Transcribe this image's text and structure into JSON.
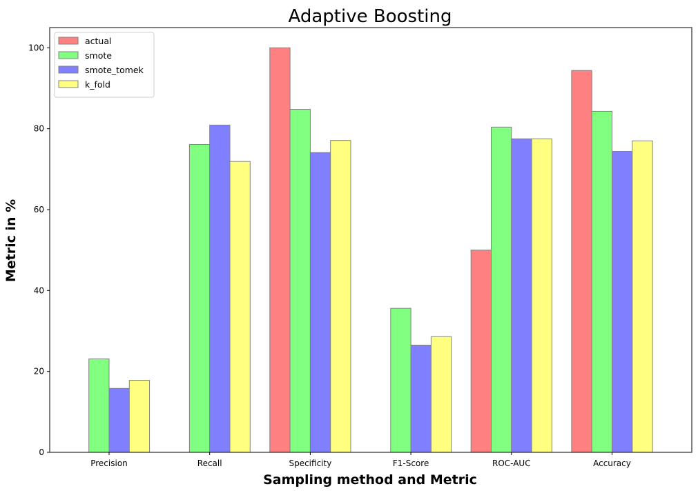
{
  "chart_data": {
    "type": "bar",
    "title": "Adaptive Boosting",
    "xlabel": "Sampling method and Metric",
    "ylabel": "Metric in %",
    "categories": [
      "Precision",
      "Recall",
      "Specificity",
      "F1-Score",
      "ROC-AUC",
      "Accuracy"
    ],
    "series": [
      {
        "name": "actual",
        "color": "#ff8080",
        "values": [
          0,
          0,
          100,
          0,
          50,
          94.4
        ]
      },
      {
        "name": "smote",
        "color": "#80ff80",
        "values": [
          23.1,
          76.1,
          84.8,
          35.6,
          80.4,
          84.3
        ]
      },
      {
        "name": "smote_tomek",
        "color": "#8080ff",
        "values": [
          15.8,
          80.9,
          74.1,
          26.5,
          77.5,
          74.4
        ]
      },
      {
        "name": "k_fold",
        "color": "#ffff80",
        "values": [
          17.8,
          71.9,
          77.1,
          28.6,
          77.5,
          77.0
        ]
      }
    ],
    "ylim": [
      0,
      105
    ],
    "yticks": [
      0,
      20,
      40,
      60,
      80,
      100
    ],
    "edge_color": "#808080",
    "grid": false,
    "legend": "top-left"
  }
}
